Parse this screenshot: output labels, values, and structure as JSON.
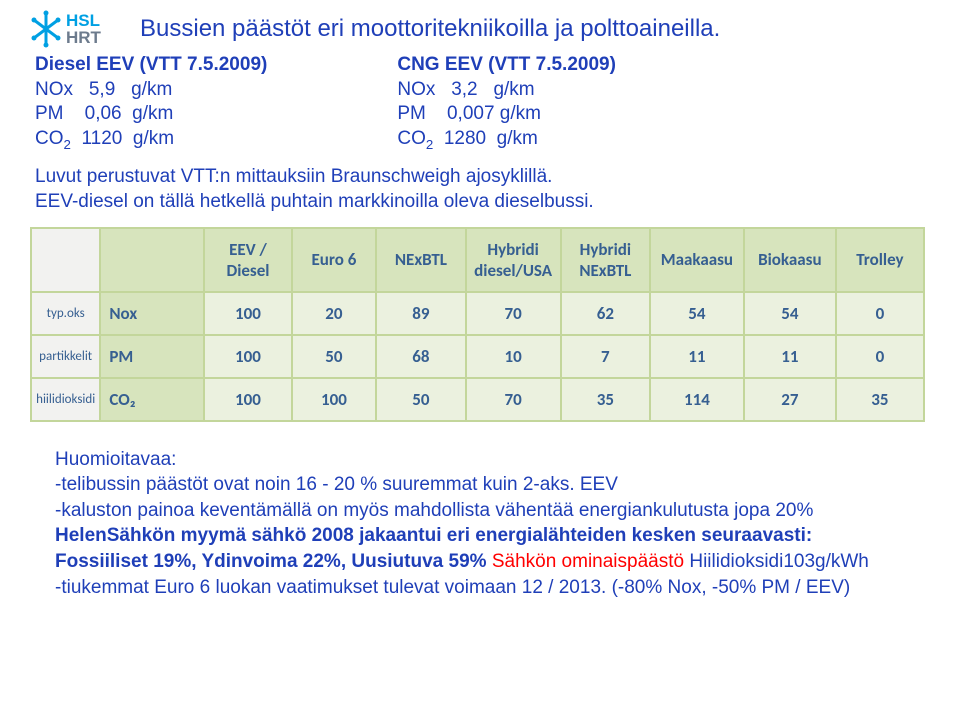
{
  "logo": {
    "line1": "HSL",
    "line2": "HRT"
  },
  "title": "Bussien päästöt eri moottoritekniikoilla ja polttoaineilla.",
  "left_spec": {
    "heading": "Diesel EEV (VTT 7.5.2009)",
    "nox_label": "NOx",
    "nox_val": "5,9",
    "nox_unit": "g/km",
    "pm_label": "PM",
    "pm_val": "0,06",
    "pm_unit": "g/km",
    "co2_label": "CO",
    "co2_val": "1120",
    "co2_unit": "g/km"
  },
  "right_spec": {
    "heading": "CNG EEV (VTT 7.5.2009)",
    "nox_label": "NOx",
    "nox_val": "3,2",
    "nox_unit": "g/km",
    "pm_label": "PM",
    "pm_val": "0,007",
    "pm_unit": "g/km",
    "co2_label": "CO",
    "co2_val": "1280",
    "co2_unit": "g/km"
  },
  "note_line1": "Luvut perustuvat VTT:n mittauksiin Braunschweigh ajosyklillä.",
  "note_line2": "EEV-diesel on tällä hetkellä puhtain markkinoilla oleva dieselbussi.",
  "table": {
    "columns": [
      "EEV / Diesel",
      "Euro 6",
      "NExBTL",
      "Hybridi diesel/USA",
      "Hybridi NExBTL",
      "Maakaasu",
      "Biokaasu",
      "Trolley"
    ],
    "rows": [
      {
        "rowhint": "typ.oks",
        "label": "Nox",
        "vals": [
          "100",
          "20",
          "89",
          "70",
          "62",
          "54",
          "54",
          "0"
        ]
      },
      {
        "rowhint": "partikkelit",
        "label": "PM",
        "vals": [
          "100",
          "50",
          "68",
          "10",
          "7",
          "11",
          "11",
          "0"
        ]
      },
      {
        "rowhint": "hiilidioksidi",
        "label": "CO₂",
        "vals": [
          "100",
          "100",
          "50",
          "70",
          "35",
          "114",
          "27",
          "35"
        ]
      }
    ]
  },
  "notice": {
    "h": "Huomioitavaa:",
    "l1": "-telibussin päästöt ovat noin 16 - 20 % suuremmat kuin 2-aks. EEV",
    "l2": "-kaluston painoa keventämällä on myös mahdollista vähentää energiankulutusta jopa 20%",
    "l3a": "HelenSähkön myymä sähkö 2008 jakaantui eri energialähteiden kesken seuraavasti:",
    "l4a": "Fossiiliset 19%, Ydinvoima 22%, Uusiutuva 59% ",
    "l4b": "Sähkön ominaispäästö",
    "l4c": " Hiilidioksidi103g/kWh",
    "l5": "-tiukemmat Euro 6 luokan vaatimukset tulevat voimaan 12 / 2013. (-80% Nox, -50% PM / EEV)"
  }
}
